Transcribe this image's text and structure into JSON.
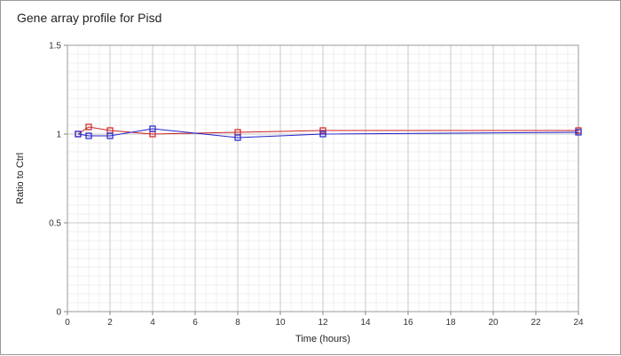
{
  "chart_data": {
    "type": "line",
    "title": "Gene array profile for Pisd",
    "xlabel": "Time (hours)",
    "ylabel": "Ratio to Ctrl",
    "xlim": [
      0,
      24
    ],
    "ylim": [
      0,
      1.5
    ],
    "x_ticks": [
      0,
      2,
      4,
      6,
      8,
      10,
      12,
      14,
      16,
      18,
      20,
      22,
      24
    ],
    "y_ticks": [
      0,
      0.5,
      1,
      1.5
    ],
    "y_tick_labels": [
      "0",
      "0.5",
      "1",
      "1.5"
    ],
    "grid": true,
    "legend": "none",
    "series": [
      {
        "color": "#cc2222",
        "marker": "square",
        "x": [
          0.5,
          1,
          2,
          4,
          8,
          12,
          24
        ],
        "y": [
          1.0,
          1.04,
          1.02,
          1.0,
          1.01,
          1.02,
          1.02
        ]
      },
      {
        "color": "#2222cc",
        "marker": "square",
        "x": [
          0.5,
          1,
          2,
          4,
          8,
          12,
          24
        ],
        "y": [
          1.0,
          0.99,
          0.99,
          1.03,
          0.98,
          1.0,
          1.01
        ]
      }
    ]
  }
}
